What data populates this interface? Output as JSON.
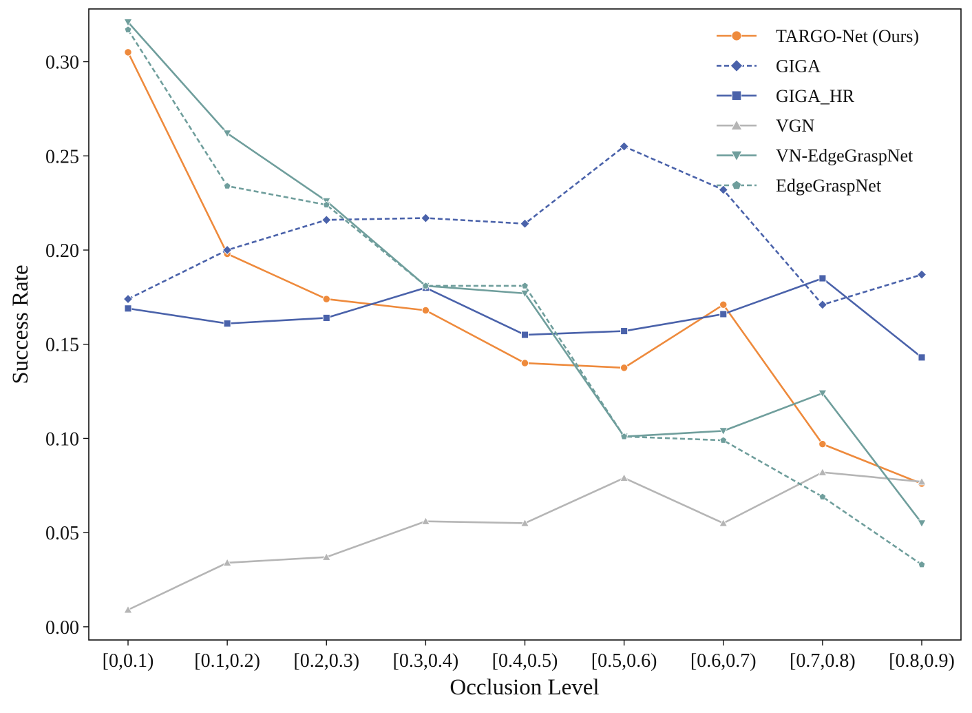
{
  "chart_data": {
    "type": "line",
    "title": "",
    "xlabel": "Occlusion Level",
    "ylabel": "Success Rate",
    "ylim": [
      -0.007,
      0.328
    ],
    "yticks": [
      0.0,
      0.05,
      0.1,
      0.15,
      0.2,
      0.25,
      0.3
    ],
    "ytick_labels": [
      "0.00",
      "0.05",
      "0.10",
      "0.15",
      "0.20",
      "0.25",
      "0.30"
    ],
    "categories": [
      "[0,0.1)",
      "[0.1,0.2)",
      "[0.2,0.3)",
      "[0.3,0.4)",
      "[0.4,0.5)",
      "[0.5,0.6)",
      "[0.6,0.7)",
      "[0.7,0.8)",
      "[0.8,0.9)"
    ],
    "legend_position": "top-right",
    "grid": false,
    "series": [
      {
        "name": "TARGO-Net (Ours)",
        "color": "#EE8A3C",
        "dash": "solid",
        "marker": "circle",
        "values": [
          0.305,
          0.198,
          0.174,
          0.168,
          0.14,
          0.1375,
          0.171,
          0.097,
          0.076
        ]
      },
      {
        "name": "GIGA",
        "color": "#4A62AA",
        "dash": "dashed",
        "marker": "diamond",
        "values": [
          0.174,
          0.2,
          0.216,
          0.217,
          0.214,
          0.255,
          0.232,
          0.171,
          0.187
        ]
      },
      {
        "name": "GIGA_HR",
        "color": "#4A62AA",
        "dash": "solid",
        "marker": "square",
        "values": [
          0.169,
          0.161,
          0.164,
          0.18,
          0.155,
          0.157,
          0.166,
          0.185,
          0.143
        ]
      },
      {
        "name": "VGN",
        "color": "#B5B5B5",
        "dash": "solid",
        "marker": "triangle-up",
        "values": [
          0.009,
          0.034,
          0.037,
          0.056,
          0.055,
          0.079,
          0.055,
          0.082,
          0.077
        ]
      },
      {
        "name": "VN-EdgeGraspNet",
        "color": "#6F9E9C",
        "dash": "solid",
        "marker": "triangle-down",
        "values": [
          0.321,
          0.262,
          0.226,
          0.181,
          0.177,
          0.101,
          0.104,
          0.124,
          0.055
        ]
      },
      {
        "name": "EdgeGraspNet",
        "color": "#6F9E9C",
        "dash": "dashed",
        "marker": "pentagon",
        "values": [
          0.317,
          0.234,
          0.224,
          0.181,
          0.181,
          0.101,
          0.099,
          0.069,
          0.033
        ]
      }
    ]
  }
}
